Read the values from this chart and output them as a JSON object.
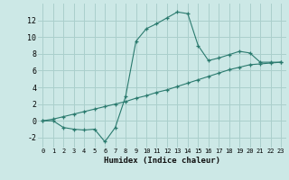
{
  "xlabel": "Humidex (Indice chaleur)",
  "bg_color": "#cce8e6",
  "grid_color": "#aacfcc",
  "line_color": "#2a7a6e",
  "xlim": [
    -0.5,
    23.5
  ],
  "ylim": [
    -3.2,
    14.0
  ],
  "xticks": [
    0,
    1,
    2,
    3,
    4,
    5,
    6,
    7,
    8,
    9,
    10,
    11,
    12,
    13,
    14,
    15,
    16,
    17,
    18,
    19,
    20,
    21,
    22,
    23
  ],
  "yticks": [
    -2,
    0,
    2,
    4,
    6,
    8,
    10,
    12
  ],
  "line1_x": [
    0,
    1,
    2,
    3,
    4,
    5,
    6,
    7,
    8,
    9,
    10,
    11,
    12,
    13,
    14,
    15,
    16,
    17,
    18,
    19,
    20,
    21,
    22,
    23
  ],
  "line1_y": [
    0.0,
    0.0,
    -0.8,
    -1.0,
    -1.1,
    -1.0,
    -2.5,
    -0.8,
    2.9,
    9.5,
    11.0,
    11.6,
    12.3,
    13.0,
    12.8,
    9.0,
    7.2,
    7.5,
    7.9,
    8.3,
    8.1,
    7.0,
    7.0,
    7.0
  ],
  "line2_x": [
    0,
    1,
    2,
    3,
    4,
    5,
    6,
    7,
    8,
    9,
    10,
    11,
    12,
    13,
    14,
    15,
    16,
    17,
    18,
    19,
    20,
    21,
    22,
    23
  ],
  "line2_y": [
    0.0,
    0.2,
    0.5,
    0.8,
    1.1,
    1.4,
    1.7,
    2.0,
    2.3,
    2.7,
    3.0,
    3.4,
    3.7,
    4.1,
    4.5,
    4.9,
    5.3,
    5.7,
    6.1,
    6.4,
    6.7,
    6.8,
    6.9,
    7.0
  ]
}
